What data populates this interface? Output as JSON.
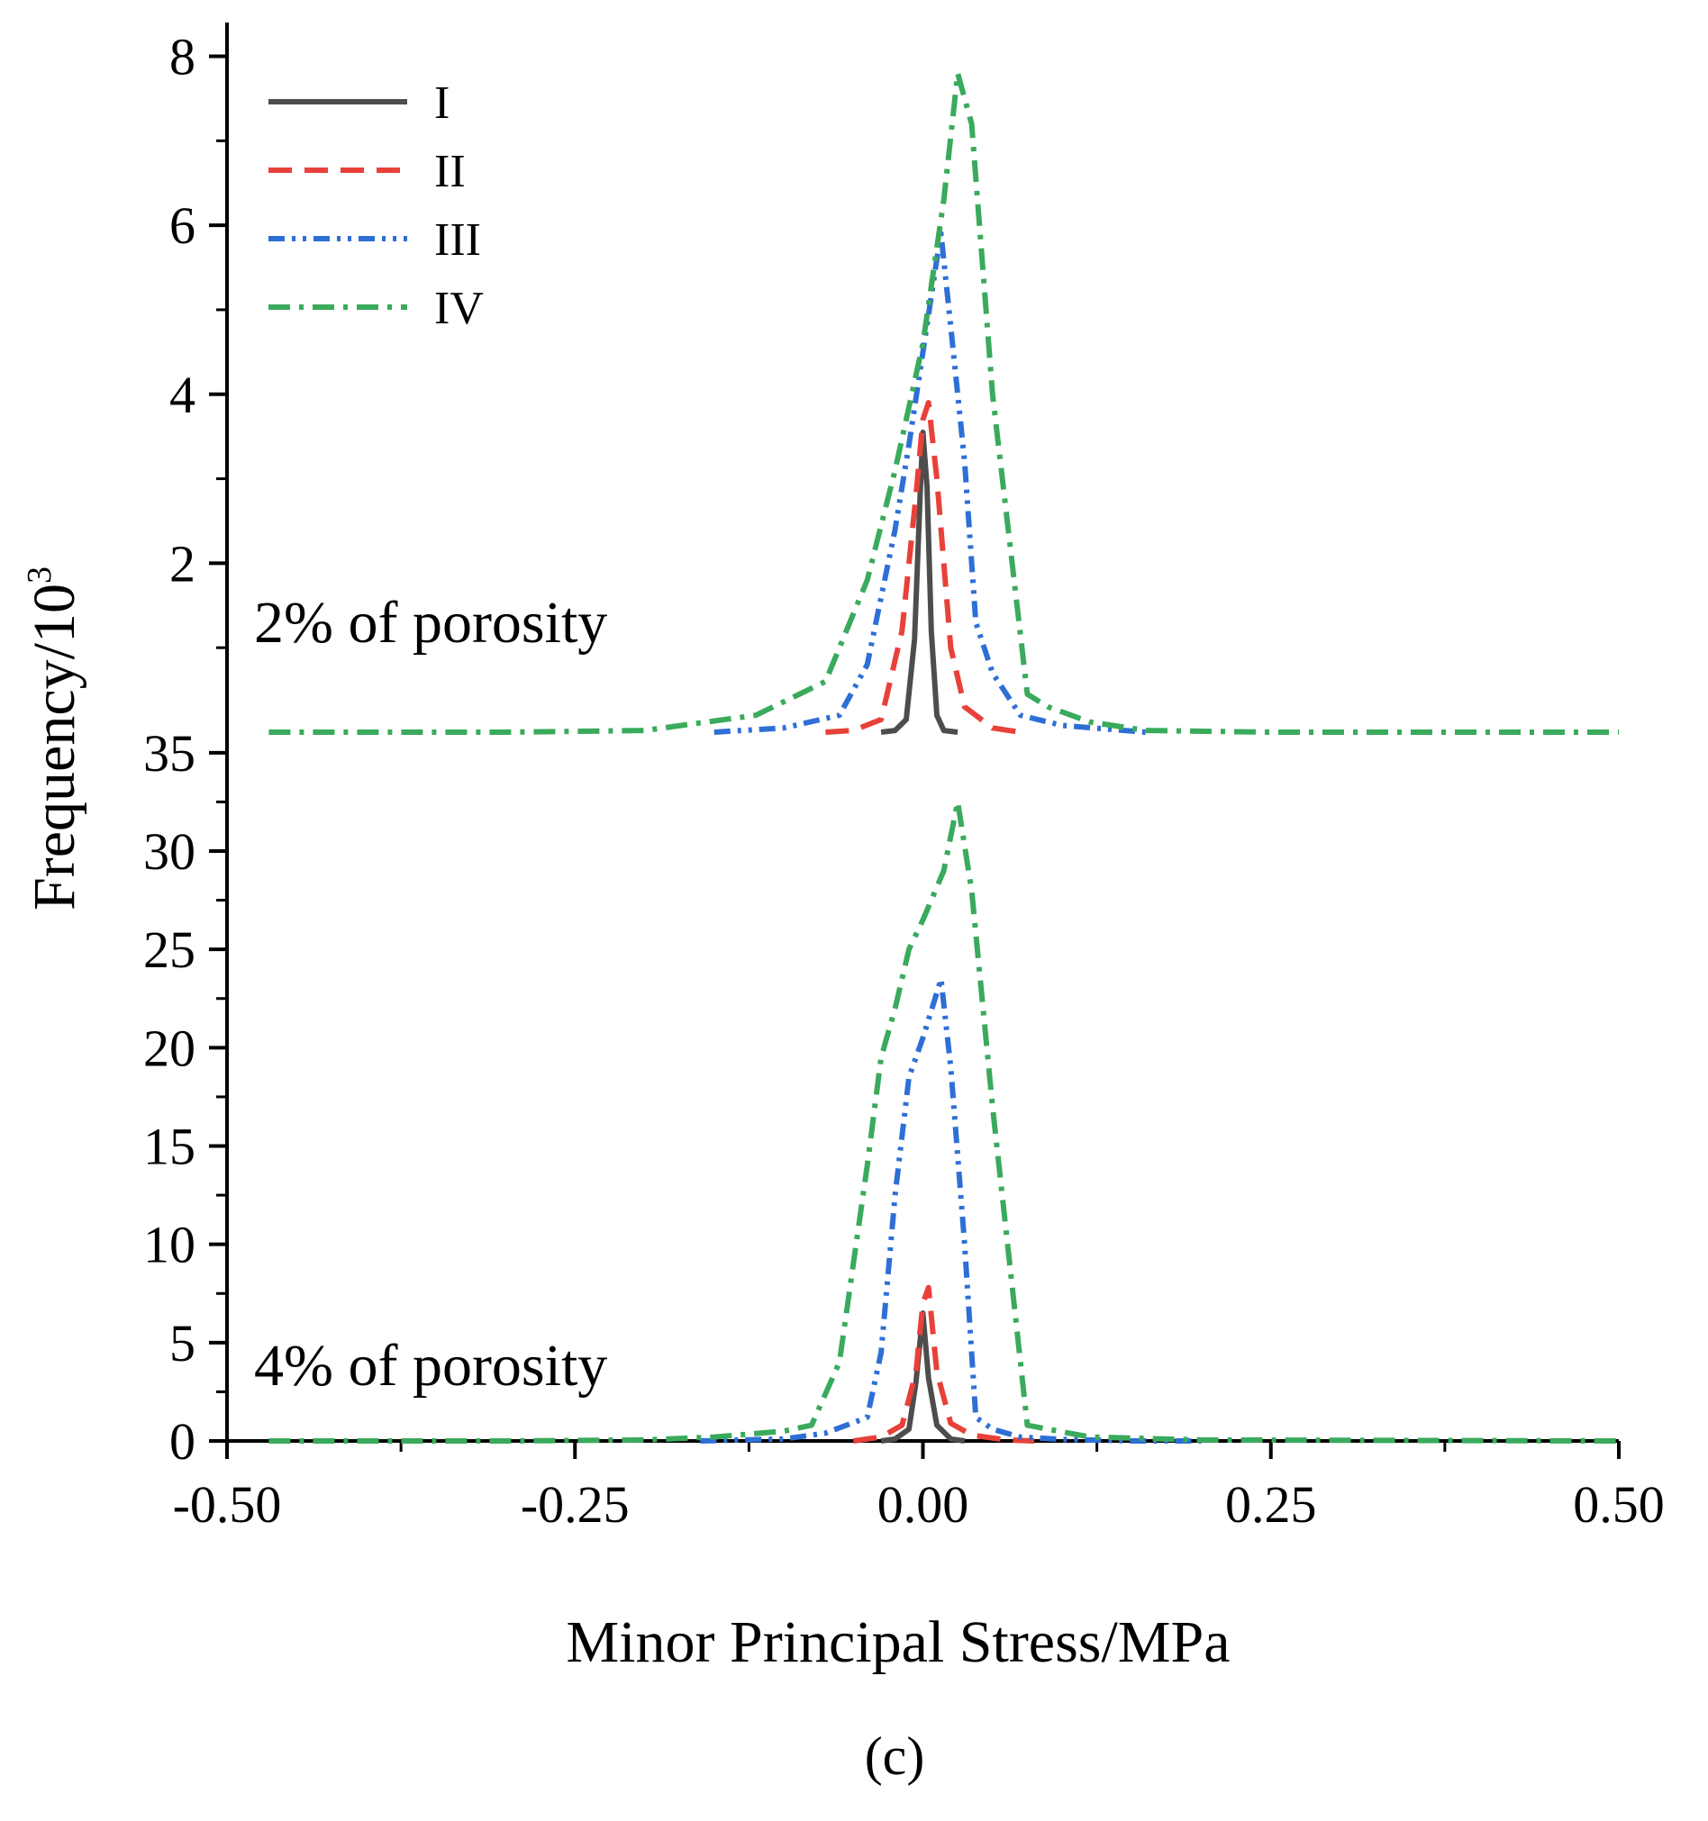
{
  "chart_data": {
    "type": "line",
    "title": "",
    "xlabel": "Minor Principal Stress/MPa",
    "ylabel": "Frequency/10",
    "ylabel_exponent": "3",
    "caption": "(c)",
    "xlim": [
      -0.5,
      0.5
    ],
    "x_ticks": [
      -0.5,
      -0.25,
      0.0,
      0.25,
      0.5
    ],
    "x_tick_labels": [
      "-0.50",
      "-0.25",
      "0.00",
      "0.25",
      "0.50"
    ],
    "legend": {
      "position": "top-left",
      "entries": [
        {
          "label": "I",
          "color": "#4d4d4d",
          "dash": "solid"
        },
        {
          "label": "II",
          "color": "#e8413a",
          "dash": "dash"
        },
        {
          "label": "III",
          "color": "#2e6fd6",
          "dash": "dash-dot-dot"
        },
        {
          "label": "IV",
          "color": "#3aaa5c",
          "dash": "dash-dot"
        }
      ]
    },
    "panels": [
      {
        "label": "2% of porosity",
        "ylim": [
          0,
          8.4
        ],
        "y_ticks": [
          2,
          4,
          6,
          8
        ],
        "y_tick_labels": [
          "2",
          "4",
          "6",
          "8"
        ],
        "series": [
          {
            "name": "I",
            "color": "#4d4d4d",
            "dash": "solid",
            "x": [
              -0.03,
              -0.02,
              -0.012,
              -0.006,
              -0.002,
              0.0,
              0.003,
              0.006,
              0.01,
              0.015,
              0.025
            ],
            "y": [
              0,
              0.02,
              0.15,
              1.1,
              2.8,
              3.55,
              2.9,
              1.2,
              0.2,
              0.02,
              0
            ]
          },
          {
            "name": "II",
            "color": "#e8413a",
            "dash": "dash",
            "x": [
              -0.07,
              -0.05,
              -0.03,
              -0.015,
              -0.005,
              0.0,
              0.004,
              0.01,
              0.02,
              0.03,
              0.05,
              0.07
            ],
            "y": [
              0,
              0.02,
              0.15,
              1.2,
              2.8,
              3.7,
              3.9,
              3.0,
              1.0,
              0.3,
              0.05,
              0
            ]
          },
          {
            "name": "III",
            "color": "#2e6fd6",
            "dash": "dash-dot-dot",
            "x": [
              -0.15,
              -0.1,
              -0.06,
              -0.04,
              -0.02,
              -0.01,
              0.0,
              0.01,
              0.013,
              0.02,
              0.03,
              0.038,
              0.05,
              0.07,
              0.1,
              0.16
            ],
            "y": [
              0,
              0.05,
              0.2,
              0.8,
              2.4,
              3.4,
              4.5,
              5.6,
              5.9,
              4.8,
              3.2,
              1.3,
              0.7,
              0.2,
              0.08,
              0
            ]
          },
          {
            "name": "IV",
            "color": "#3aaa5c",
            "dash": "dash-dot",
            "x": [
              -0.47,
              -0.3,
              -0.2,
              -0.12,
              -0.07,
              -0.04,
              -0.02,
              0.0,
              0.015,
              0.025,
              0.035,
              0.05,
              0.075,
              0.09,
              0.12,
              0.16,
              0.25,
              0.5
            ],
            "y": [
              0,
              0,
              0.02,
              0.2,
              0.6,
              1.8,
              3.1,
              4.6,
              6.3,
              7.8,
              7.2,
              4.0,
              0.45,
              0.3,
              0.12,
              0.02,
              0,
              0
            ]
          }
        ]
      },
      {
        "label": "4% of porosity",
        "ylim": [
          0,
          36
        ],
        "y_ticks": [
          0,
          5,
          10,
          15,
          20,
          25,
          30,
          35
        ],
        "y_tick_labels": [
          "0",
          "5",
          "10",
          "15",
          "20",
          "25",
          "30",
          "35"
        ],
        "series": [
          {
            "name": "I",
            "color": "#4d4d4d",
            "dash": "solid",
            "x": [
              -0.03,
              -0.02,
              -0.01,
              -0.005,
              0.0,
              0.004,
              0.01,
              0.02,
              0.03
            ],
            "y": [
              0,
              0.1,
              0.6,
              3.0,
              6.5,
              3.2,
              0.8,
              0.1,
              0
            ]
          },
          {
            "name": "II",
            "color": "#e8413a",
            "dash": "dash",
            "x": [
              -0.05,
              -0.03,
              -0.015,
              -0.005,
              0.0,
              0.004,
              0.01,
              0.02,
              0.035,
              0.06,
              0.08
            ],
            "y": [
              0,
              0.2,
              0.8,
              3.5,
              7.0,
              7.8,
              3.5,
              0.9,
              0.3,
              0.05,
              0
            ]
          },
          {
            "name": "III",
            "color": "#2e6fd6",
            "dash": "dash-dot-dot",
            "x": [
              -0.16,
              -0.1,
              -0.07,
              -0.04,
              -0.03,
              -0.02,
              -0.01,
              0.0,
              0.01,
              0.013,
              0.02,
              0.03,
              0.038,
              0.05,
              0.07,
              0.1,
              0.15,
              0.2
            ],
            "y": [
              0,
              0.1,
              0.4,
              1.2,
              4.5,
              12.5,
              18.5,
              20.5,
              22.8,
              23.5,
              19.0,
              10.0,
              1.2,
              0.6,
              0.2,
              0.08,
              0,
              0
            ]
          },
          {
            "name": "IV",
            "color": "#3aaa5c",
            "dash": "dash-dot",
            "x": [
              -0.47,
              -0.3,
              -0.2,
              -0.15,
              -0.1,
              -0.08,
              -0.06,
              -0.04,
              -0.03,
              -0.02,
              -0.01,
              0.0,
              0.015,
              0.025,
              0.035,
              0.05,
              0.075,
              0.09,
              0.12,
              0.2,
              0.5
            ],
            "y": [
              0,
              0,
              0.05,
              0.2,
              0.5,
              0.8,
              4.0,
              14.0,
              19.5,
              22.0,
              25.0,
              26.5,
              29.0,
              32.5,
              28.0,
              17.0,
              0.8,
              0.6,
              0.2,
              0.05,
              0
            ]
          }
        ]
      }
    ]
  }
}
